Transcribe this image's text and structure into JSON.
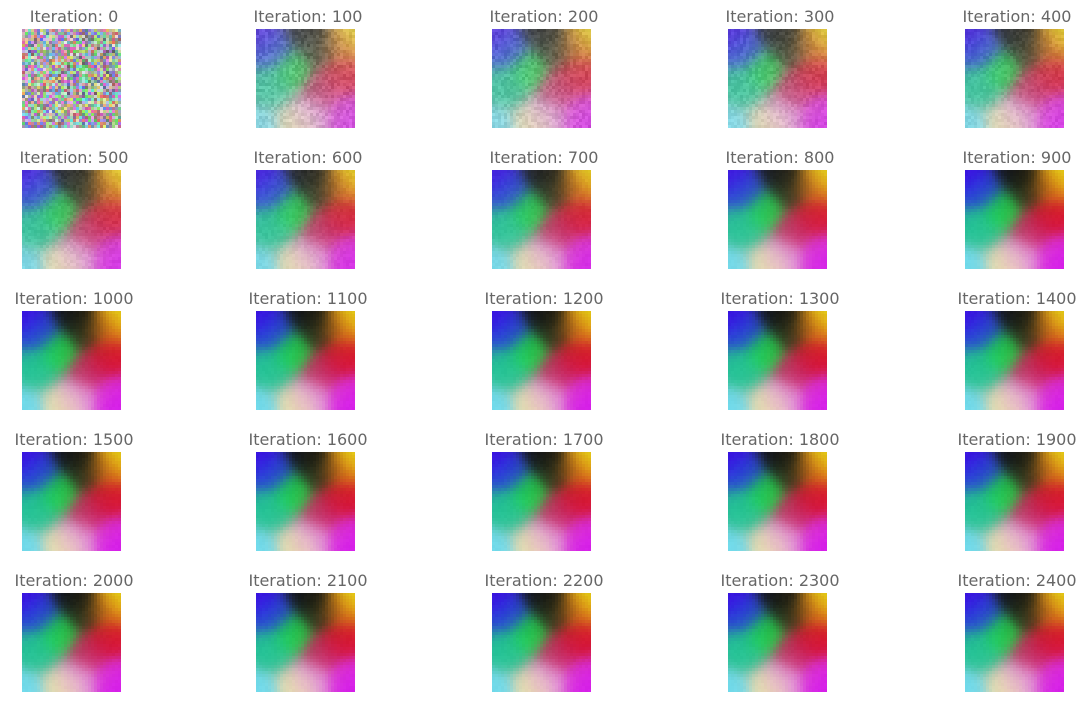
{
  "figure": {
    "panels": [
      {
        "title": "Iteration: 0",
        "iteration": 0
      },
      {
        "title": "Iteration: 100",
        "iteration": 100
      },
      {
        "title": "Iteration: 200",
        "iteration": 200
      },
      {
        "title": "Iteration: 300",
        "iteration": 300
      },
      {
        "title": "Iteration: 400",
        "iteration": 400
      },
      {
        "title": "Iteration: 500",
        "iteration": 500
      },
      {
        "title": "Iteration: 600",
        "iteration": 600
      },
      {
        "title": "Iteration: 700",
        "iteration": 700
      },
      {
        "title": "Iteration: 800",
        "iteration": 800
      },
      {
        "title": "Iteration: 900",
        "iteration": 900
      },
      {
        "title": "Iteration: 1000",
        "iteration": 1000
      },
      {
        "title": "Iteration: 1100",
        "iteration": 1100
      },
      {
        "title": "Iteration: 1200",
        "iteration": 1200
      },
      {
        "title": "Iteration: 1300",
        "iteration": 1300
      },
      {
        "title": "Iteration: 1400",
        "iteration": 1400
      },
      {
        "title": "Iteration: 1500",
        "iteration": 1500
      },
      {
        "title": "Iteration: 1600",
        "iteration": 1600
      },
      {
        "title": "Iteration: 1700",
        "iteration": 1700
      },
      {
        "title": "Iteration: 1800",
        "iteration": 1800
      },
      {
        "title": "Iteration: 1900",
        "iteration": 1900
      },
      {
        "title": "Iteration: 2000",
        "iteration": 2000
      },
      {
        "title": "Iteration: 2100",
        "iteration": 2100
      },
      {
        "title": "Iteration: 2200",
        "iteration": 2200
      },
      {
        "title": "Iteration: 2300",
        "iteration": 2300
      },
      {
        "title": "Iteration: 2400",
        "iteration": 2400
      }
    ],
    "colors": {
      "title_text": "#666666",
      "background": "#ffffff"
    }
  }
}
